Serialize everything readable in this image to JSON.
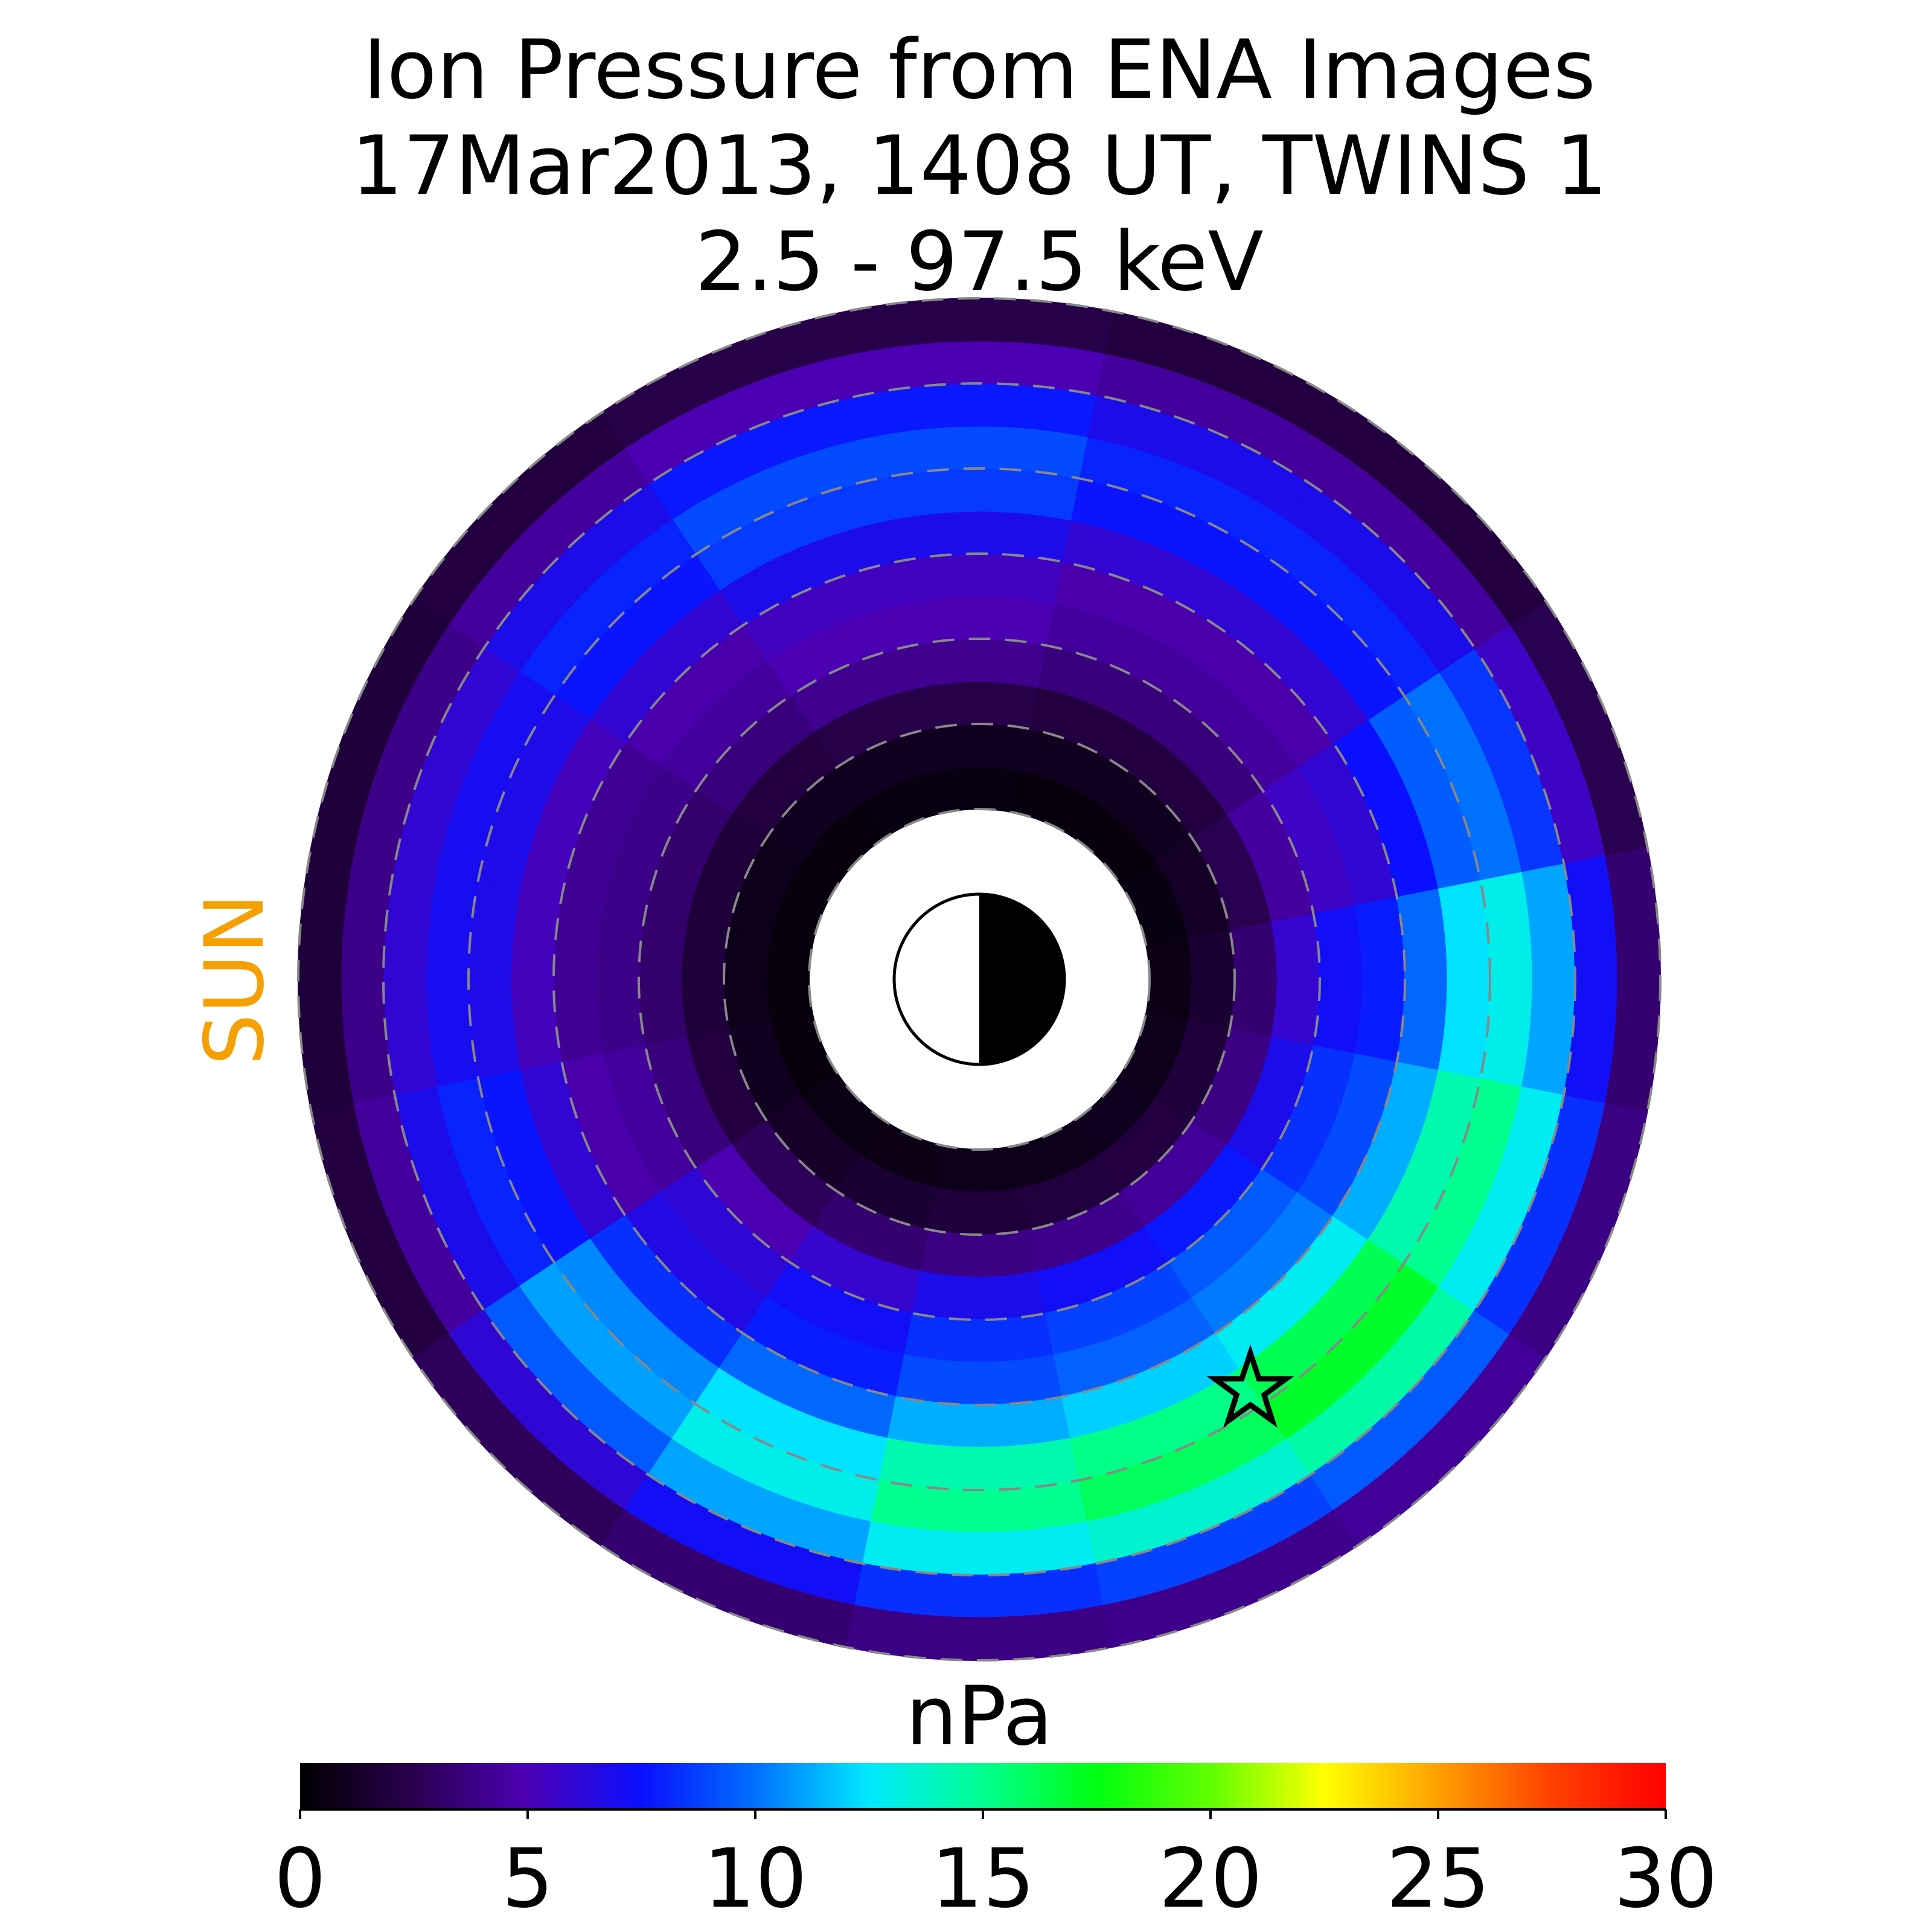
{
  "chart_data": {
    "type": "polar-heatmap",
    "title": [
      "Ion Pressure from  ENA Images",
      "17Mar2013, 1408 UT,  TWINS 1",
      "2.5 - 97.5 keV"
    ],
    "sun_label": "SUN",
    "sun_color": "#f5a000",
    "colorbar_label": "nPa",
    "rlim": [
      2,
      8
    ],
    "rticks": [
      2,
      3,
      4,
      5,
      6,
      7,
      8
    ],
    "clim": [
      0,
      30
    ],
    "cticks": [
      0,
      5,
      10,
      15,
      20,
      25,
      30
    ],
    "colorscale": [
      "#000000",
      "#2a0050",
      "#4c00b4",
      "#0a10ff",
      "#0070ff",
      "#00e8ff",
      "#00ff90",
      "#00ff10",
      "#60ff00",
      "#ffff00",
      "#ffa000",
      "#ff4000",
      "#ff0000"
    ],
    "values": [
      [
        0.7,
        0.5,
        0.4,
        0.4,
        0.5,
        0.5,
        0.4,
        0.4,
        0.4,
        0.4,
        0.6,
        0.7,
        0.8,
        0.8,
        0.9,
        0.8
      ],
      [
        1.6,
        1.2,
        1.0,
        1.0,
        1.1,
        1.1,
        1.0,
        0.8,
        0.8,
        1.0,
        1.3,
        1.6,
        1.8,
        1.9,
        2.0,
        1.8
      ],
      [
        3.3,
        2.5,
        2,
        2,
        2.3,
        2.3,
        2,
        1.8,
        1.8,
        2,
        2.8,
        3.3,
        3.8,
        4,
        4.3,
        3.8
      ],
      [
        5.9,
        4.5,
        3.6,
        3.6,
        4.1,
        4.1,
        3.6,
        3.2,
        3.2,
        3.6,
        5,
        5.9,
        6.8,
        7.2,
        7.7,
        6.8
      ],
      [
        7.2,
        5.5,
        4.4,
        4.4,
        5,
        5,
        4.4,
        3.9,
        3.9,
        4.4,
        6.1,
        7.2,
        8.3,
        8.8,
        9.4,
        8.3
      ],
      [
        7.8,
        6,
        4.8,
        4.8,
        5.4,
        5.4,
        4.8,
        4.2,
        4.2,
        4.8,
        6.6,
        7.8,
        9,
        9.6,
        10.2,
        9
      ],
      [
        9.8,
        7.5,
        6,
        6,
        6.8,
        6.8,
        6,
        5.3,
        5.3,
        6,
        8.3,
        9.8,
        11.3,
        12,
        12.8,
        11.3
      ],
      [
        12.4,
        9.5,
        7.6,
        7.6,
        8.6,
        8.6,
        7.6,
        6.7,
        6.7,
        7.6,
        10.5,
        12.4,
        14.3,
        15.2,
        16.2,
        14.3
      ],
      [
        13,
        10,
        8,
        8,
        9,
        9,
        8,
        7,
        7,
        8,
        11,
        13,
        15,
        16,
        17,
        15
      ],
      [
        11.1,
        8.5,
        6.8,
        6.8,
        7.7,
        7.7,
        6.8,
        6,
        6,
        6.8,
        9.4,
        11.1,
        12.8,
        13.6,
        14.5,
        12.8
      ],
      [
        7.2,
        5.5,
        4.4,
        4.4,
        5,
        5,
        4.4,
        3.9,
        3.9,
        4.4,
        6.1,
        7.2,
        8.3,
        8.8,
        9.4,
        8.3
      ],
      [
        3.3,
        2.5,
        2,
        2,
        2.3,
        2.3,
        2,
        1.8,
        1.8,
        2,
        2.8,
        3.3,
        3.8,
        4,
        4.3,
        3.8
      ]
    ]
  }
}
